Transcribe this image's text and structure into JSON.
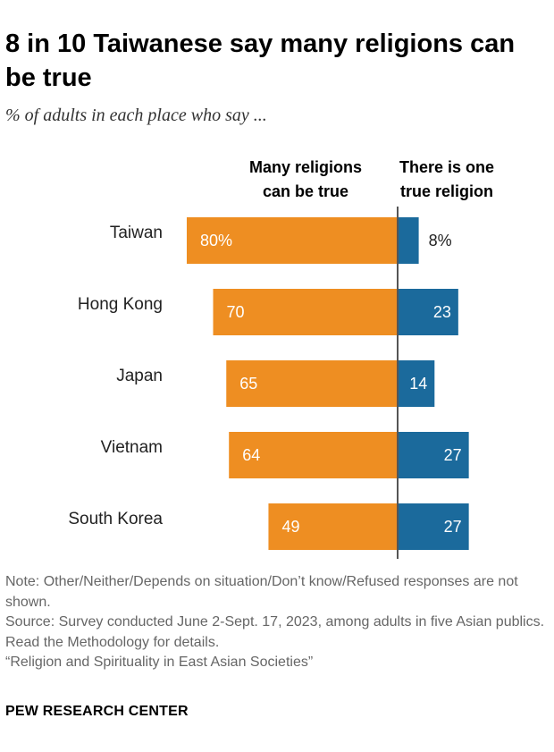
{
  "header": {
    "title": "8 in 10 Taiwanese say many religions can be true",
    "subtitle": "% of adults in each place who say ..."
  },
  "chart_data": {
    "type": "bar",
    "orientation": "horizontal-diverging",
    "categories": [
      "Taiwan",
      "Hong Kong",
      "Japan",
      "Vietnam",
      "South Korea"
    ],
    "series": [
      {
        "name": "Many religions can be true",
        "label_lines": [
          "Many religions",
          "can be true"
        ],
        "color": "#EE8E22",
        "values": [
          80,
          70,
          65,
          64,
          49
        ],
        "labels": [
          "80%",
          "70",
          "65",
          "64",
          "49"
        ]
      },
      {
        "name": "There is one true religion",
        "label_lines": [
          "There is one",
          "true religion"
        ],
        "color": "#1B6A9C",
        "values": [
          8,
          23,
          14,
          27,
          27
        ],
        "labels": [
          "8%",
          "23",
          "14",
          "27",
          "27"
        ]
      }
    ],
    "xlim": [
      0,
      100
    ]
  },
  "footer": {
    "note": "Note: Other/Neither/Depends on situation/Don’t know/Refused responses are not shown.",
    "source": "Source: Survey conducted June 2-Sept. 17, 2023, among adults in five Asian publics. Read the Methodology for details.",
    "report": "“Religion and Spirituality in East Asian Societies”",
    "brand": "PEW RESEARCH CENTER"
  }
}
